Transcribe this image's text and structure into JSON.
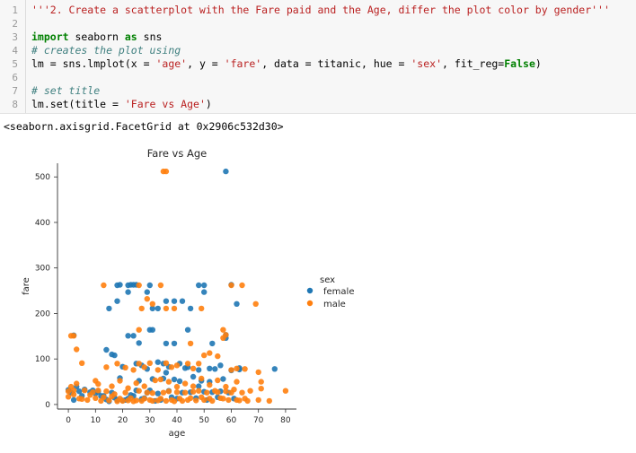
{
  "code": {
    "line_numbers": [
      "1",
      "2",
      "3",
      "4",
      "5",
      "6",
      "7",
      "8"
    ],
    "l1": "'''2. Create a scatterplot with the Fare paid and the Age, differ the plot color by gender'''",
    "l3_kw": "import",
    "l3_mod": " seaborn ",
    "l3_as": "as",
    "l3_alias": " sns",
    "l4": "# creates the plot using",
    "l5_a": "lm = sns.lmplot(x = ",
    "l5_x": "'age'",
    "l5_b": ", y = ",
    "l5_y": "'fare'",
    "l5_c": ", data = titanic, hue = ",
    "l5_hue": "'sex'",
    "l5_d": ", fit_reg=",
    "l5_false": "False",
    "l5_e": ")",
    "l7": "# set title",
    "l8_a": "lm.set(title = ",
    "l8_title": "'Fare vs Age'",
    "l8_b": ")"
  },
  "output_text": "<seaborn.axisgrid.FacetGrid at 0x2906c532d30>",
  "colors": {
    "female": "#1f77b4",
    "male": "#ff7f0e"
  },
  "chart_data": {
    "type": "scatter",
    "title": "Fare vs Age",
    "xlabel": "age",
    "ylabel": "fare",
    "xlim": [
      -4,
      84
    ],
    "ylim": [
      -10,
      530
    ],
    "xticks": [
      0,
      10,
      20,
      30,
      40,
      50,
      60,
      70,
      80
    ],
    "yticks": [
      0,
      100,
      200,
      300,
      400,
      500
    ],
    "legend": {
      "title": "sex",
      "position": "right",
      "entries": [
        "female",
        "male"
      ]
    },
    "series": [
      {
        "name": "female",
        "color": "#1f77b4",
        "points": [
          [
            58,
            512
          ],
          [
            24,
            263
          ],
          [
            23,
            263
          ],
          [
            22,
            262
          ],
          [
            19,
            263
          ],
          [
            25,
            263
          ],
          [
            18,
            262
          ],
          [
            30,
            262
          ],
          [
            48,
            262
          ],
          [
            50,
            262
          ],
          [
            60,
            263
          ],
          [
            15,
            211
          ],
          [
            18,
            227
          ],
          [
            22,
            247
          ],
          [
            31,
            211
          ],
          [
            33,
            211
          ],
          [
            36,
            227
          ],
          [
            39,
            227
          ],
          [
            42,
            227
          ],
          [
            45,
            211
          ],
          [
            50,
            247
          ],
          [
            62,
            221
          ],
          [
            29,
            247
          ],
          [
            17,
            108
          ],
          [
            22,
            151
          ],
          [
            24,
            151
          ],
          [
            30,
            164
          ],
          [
            31,
            164
          ],
          [
            36,
            134
          ],
          [
            39,
            134
          ],
          [
            44,
            164
          ],
          [
            53,
            134
          ],
          [
            58,
            153
          ],
          [
            58,
            146
          ],
          [
            14,
            120
          ],
          [
            16,
            110
          ],
          [
            20,
            83
          ],
          [
            25,
            90
          ],
          [
            27,
            86
          ],
          [
            29,
            78
          ],
          [
            33,
            93
          ],
          [
            35,
            90
          ],
          [
            37,
            83
          ],
          [
            41,
            90
          ],
          [
            44,
            82
          ],
          [
            48,
            76
          ],
          [
            52,
            79
          ],
          [
            54,
            78
          ],
          [
            56,
            86
          ],
          [
            63,
            80
          ],
          [
            76,
            78
          ],
          [
            2,
            152
          ],
          [
            26,
            135
          ],
          [
            0,
            32
          ],
          [
            1,
            26
          ],
          [
            3,
            39
          ],
          [
            4,
            29
          ],
          [
            5,
            19
          ],
          [
            8,
            27
          ],
          [
            9,
            31
          ],
          [
            12,
            19
          ],
          [
            14,
            11
          ],
          [
            16,
            26
          ],
          [
            18,
            10
          ],
          [
            20,
            9
          ],
          [
            22,
            13
          ],
          [
            24,
            19
          ],
          [
            25,
            31
          ],
          [
            26,
            52
          ],
          [
            28,
            14
          ],
          [
            29,
            26
          ],
          [
            30,
            31
          ],
          [
            31,
            56
          ],
          [
            32,
            8
          ],
          [
            33,
            24
          ],
          [
            35,
            57
          ],
          [
            37,
            30
          ],
          [
            38,
            16
          ],
          [
            40,
            13
          ],
          [
            41,
            51
          ],
          [
            42,
            26
          ],
          [
            45,
            27
          ],
          [
            47,
            14
          ],
          [
            49,
            52
          ],
          [
            50,
            28
          ],
          [
            51,
            10
          ],
          [
            53,
            27
          ],
          [
            55,
            16
          ],
          [
            57,
            56
          ],
          [
            59,
            26
          ],
          [
            61,
            13
          ],
          [
            63,
            77
          ],
          [
            2,
            10
          ],
          [
            6,
            33
          ],
          [
            10,
            24
          ],
          [
            11,
            28
          ],
          [
            13,
            19
          ],
          [
            15,
            7
          ],
          [
            17,
            15
          ],
          [
            19,
            58
          ],
          [
            21,
            10
          ],
          [
            23,
            21
          ],
          [
            27,
            12
          ],
          [
            34,
            10
          ],
          [
            36,
            70
          ],
          [
            39,
            55
          ],
          [
            43,
            80
          ],
          [
            46,
            61
          ],
          [
            48,
            40
          ],
          [
            52,
            50
          ],
          [
            56,
            29
          ],
          [
            60,
            75
          ]
        ]
      },
      {
        "name": "male",
        "color": "#ff7f0e",
        "points": [
          [
            35,
            512
          ],
          [
            36,
            512
          ],
          [
            13,
            262
          ],
          [
            26,
            262
          ],
          [
            34,
            262
          ],
          [
            60,
            262
          ],
          [
            64,
            262
          ],
          [
            69,
            221
          ],
          [
            27,
            211
          ],
          [
            31,
            221
          ],
          [
            36,
            211
          ],
          [
            39,
            211
          ],
          [
            49,
            211
          ],
          [
            29,
            232
          ],
          [
            1,
            151
          ],
          [
            2,
            151
          ],
          [
            57,
            164
          ],
          [
            58,
            153
          ],
          [
            57,
            146
          ],
          [
            3,
            121
          ],
          [
            5,
            91
          ],
          [
            10,
            52
          ],
          [
            14,
            82
          ],
          [
            18,
            90
          ],
          [
            21,
            81
          ],
          [
            24,
            76
          ],
          [
            26,
            90
          ],
          [
            28,
            82
          ],
          [
            30,
            91
          ],
          [
            33,
            76
          ],
          [
            36,
            91
          ],
          [
            38,
            82
          ],
          [
            40,
            86
          ],
          [
            44,
            90
          ],
          [
            46,
            79
          ],
          [
            48,
            90
          ],
          [
            50,
            108
          ],
          [
            52,
            113
          ],
          [
            55,
            106
          ],
          [
            60,
            76
          ],
          [
            62,
            79
          ],
          [
            65,
            78
          ],
          [
            70,
            71
          ],
          [
            71,
            50
          ],
          [
            80,
            30
          ],
          [
            26,
            164
          ],
          [
            45,
            134
          ],
          [
            0,
            29
          ],
          [
            0,
            17
          ],
          [
            1,
            39
          ],
          [
            2,
            22
          ],
          [
            3,
            46
          ],
          [
            4,
            13
          ],
          [
            6,
            31
          ],
          [
            7,
            10
          ],
          [
            8,
            21
          ],
          [
            9,
            27
          ],
          [
            10,
            14
          ],
          [
            11,
            31
          ],
          [
            12,
            8
          ],
          [
            13,
            16
          ],
          [
            14,
            29
          ],
          [
            15,
            9
          ],
          [
            16,
            18
          ],
          [
            17,
            23
          ],
          [
            18,
            7
          ],
          [
            19,
            13
          ],
          [
            20,
            8
          ],
          [
            21,
            26
          ],
          [
            22,
            9
          ],
          [
            23,
            14
          ],
          [
            24,
            7
          ],
          [
            25,
            9
          ],
          [
            26,
            30
          ],
          [
            27,
            8
          ],
          [
            28,
            13
          ],
          [
            29,
            26
          ],
          [
            30,
            10
          ],
          [
            31,
            8
          ],
          [
            32,
            53
          ],
          [
            33,
            9
          ],
          [
            34,
            13
          ],
          [
            35,
            26
          ],
          [
            36,
            8
          ],
          [
            37,
            29
          ],
          [
            38,
            10
          ],
          [
            39,
            7
          ],
          [
            40,
            27
          ],
          [
            41,
            13
          ],
          [
            42,
            8
          ],
          [
            43,
            26
          ],
          [
            44,
            10
          ],
          [
            45,
            14
          ],
          [
            46,
            28
          ],
          [
            47,
            9
          ],
          [
            48,
            30
          ],
          [
            49,
            16
          ],
          [
            50,
            10
          ],
          [
            51,
            26
          ],
          [
            52,
            13
          ],
          [
            53,
            8
          ],
          [
            54,
            30
          ],
          [
            55,
            27
          ],
          [
            56,
            14
          ],
          [
            57,
            13
          ],
          [
            58,
            29
          ],
          [
            59,
            10
          ],
          [
            60,
            26
          ],
          [
            61,
            33
          ],
          [
            62,
            10
          ],
          [
            63,
            9
          ],
          [
            64,
            26
          ],
          [
            65,
            13
          ],
          [
            66,
            8
          ],
          [
            70,
            10
          ],
          [
            71,
            35
          ],
          [
            74,
            8
          ],
          [
            2,
            31
          ],
          [
            5,
            12
          ],
          [
            11,
            45
          ],
          [
            16,
            40
          ],
          [
            19,
            52
          ],
          [
            22,
            36
          ],
          [
            25,
            47
          ],
          [
            28,
            40
          ],
          [
            31,
            25
          ],
          [
            34,
            55
          ],
          [
            37,
            50
          ],
          [
            40,
            39
          ],
          [
            43,
            46
          ],
          [
            46,
            40
          ],
          [
            49,
            57
          ],
          [
            52,
            43
          ],
          [
            55,
            53
          ],
          [
            58,
            39
          ],
          [
            62,
            50
          ],
          [
            67,
            30
          ]
        ]
      }
    ]
  }
}
